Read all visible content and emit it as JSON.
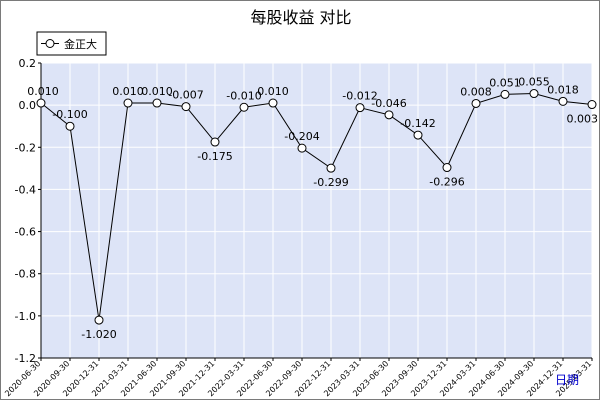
{
  "chart_data": {
    "type": "line",
    "title": "每股收益  对比",
    "xlabel": "日期",
    "ylabel": "",
    "ylim": [
      -1.2,
      0.2
    ],
    "yticks": [
      0.2,
      0.0,
      -0.2,
      -0.4,
      -0.6,
      -0.8,
      -1.0,
      -1.2
    ],
    "ytick_labels": [
      "0.2",
      "0.0",
      "-0.2",
      "-0.4",
      "-0.6",
      "-0.8",
      "-1.0",
      "-1.2"
    ],
    "grid": true,
    "legend_position": "top-left",
    "colors": {
      "plot_background": "#dde4f7",
      "grid": "#ffffff",
      "line": "#000000",
      "marker_fill": "#ffffff",
      "xlabel": "#0000cc"
    },
    "x": [
      "2020-06-30",
      "2020-09-30",
      "2020-12-31",
      "2021-03-31",
      "2021-06-30",
      "2021-09-30",
      "2021-12-31",
      "2022-03-31",
      "2022-06-30",
      "2022-09-30",
      "2022-12-31",
      "2023-03-31",
      "2023-06-30",
      "2023-09-30",
      "2023-12-31",
      "2024-03-31",
      "2024-06-30",
      "2024-09-30",
      "2024-12-31",
      "2025-03-31"
    ],
    "series": [
      {
        "name": "金正大",
        "values": [
          0.01,
          -0.1,
          -1.02,
          0.01,
          0.01,
          -0.007,
          -0.175,
          -0.01,
          0.01,
          -0.204,
          -0.299,
          -0.012,
          -0.046,
          -0.142,
          -0.296,
          0.008,
          0.051,
          0.055,
          0.018,
          0.003
        ],
        "labels": [
          "0.010",
          "-0.100",
          "-1.020",
          "0.010",
          "0.010",
          "-0.007",
          "-0.175",
          "-0.010",
          "0.010",
          "-0.204",
          "-0.299",
          "-0.012",
          "-0.046",
          "-0.142",
          "-0.296",
          "0.008",
          "0.051",
          "0.055",
          "0.018",
          "0.003"
        ]
      }
    ]
  }
}
